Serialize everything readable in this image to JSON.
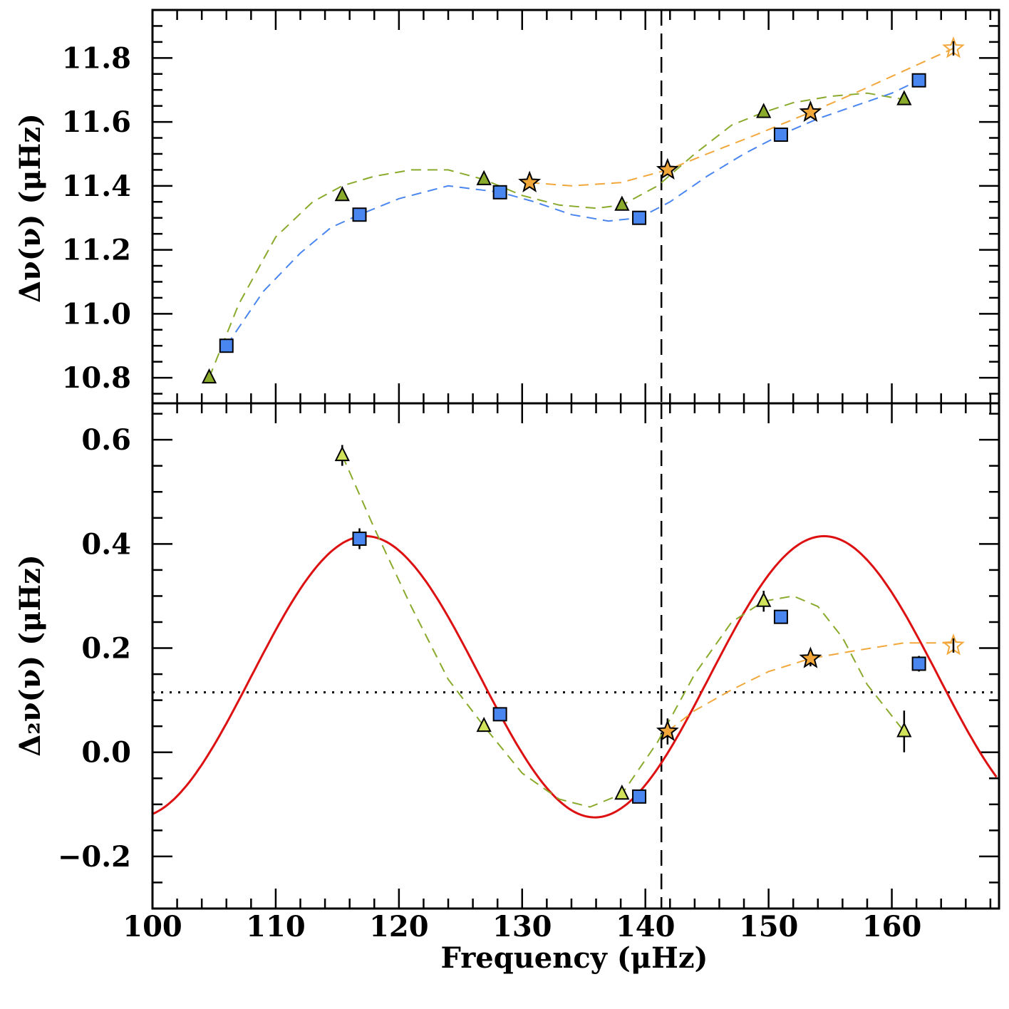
{
  "chart_data": {
    "type": "scatter",
    "xlabel": "Frequency (μHz)",
    "xlim": [
      100,
      168.7
    ],
    "xticks": [
      "100",
      "110",
      "120",
      "130",
      "140",
      "150",
      "160"
    ],
    "vline_x": 141.3,
    "colors": {
      "square": "#4a86f0",
      "triangle": "#8aaa2c",
      "star": "#f2a73a",
      "triangle_light": "#cfe25a",
      "fit": "#dd1111",
      "green_dash": "#8aaa2c",
      "blue_dash": "#4a86f0",
      "orange_dash": "#f2a73a"
    },
    "panels": [
      {
        "name": "top",
        "ylabel": "Δν(ν) (μHz)",
        "ylim": [
          10.72,
          11.95
        ],
        "yticks": [
          "10.8",
          "11.0",
          "11.2",
          "11.4",
          "11.6",
          "11.8"
        ],
        "series": [
          {
            "name": "squares",
            "marker": "square",
            "x": [
              106.0,
              116.8,
              128.2,
              139.5,
              151.0,
              162.2
            ],
            "y": [
              10.9,
              11.31,
              11.38,
              11.3,
              11.56,
              11.73
            ]
          },
          {
            "name": "triangles",
            "marker": "triangle",
            "x": [
              104.6,
              115.4,
              126.9,
              138.1,
              149.6,
              161.0
            ],
            "y": [
              10.8,
              11.37,
              11.42,
              11.34,
              11.63,
              11.67
            ]
          },
          {
            "name": "stars",
            "marker": "star",
            "x": [
              130.6,
              141.8,
              153.4,
              165.0
            ],
            "y": [
              11.41,
              11.45,
              11.63,
              11.83
            ]
          }
        ],
        "curves": [
          {
            "name": "green-dash",
            "x": [
              104.6,
              107,
              110,
              113,
              115.4,
              118,
              121,
              124,
              126.9,
              130,
              133,
              136,
              138.1,
              141,
              144,
              147,
              149.6,
              152,
              155,
              158,
              161.0
            ],
            "y": [
              10.8,
              11.03,
              11.24,
              11.35,
              11.4,
              11.43,
              11.45,
              11.45,
              11.42,
              11.37,
              11.34,
              11.33,
              11.34,
              11.4,
              11.5,
              11.59,
              11.63,
              11.66,
              11.68,
              11.69,
              11.67
            ]
          },
          {
            "name": "blue-dash",
            "x": [
              106.0,
              109,
              112,
              114.5,
              116.8,
              120,
              124,
              128.2,
              131,
              134,
              137,
              139.5,
              142,
              145,
              148,
              151.0,
              154,
              157,
              160,
              162.2
            ],
            "y": [
              10.9,
              11.07,
              11.19,
              11.27,
              11.31,
              11.36,
              11.4,
              11.38,
              11.35,
              11.31,
              11.29,
              11.3,
              11.35,
              11.43,
              11.5,
              11.56,
              11.61,
              11.65,
              11.69,
              11.73
            ]
          },
          {
            "name": "orange-dash",
            "x": [
              130.6,
              134,
              138,
              141.8,
              145,
              149,
              153.4,
              157,
              161,
              165.0
            ],
            "y": [
              11.41,
              11.4,
              11.41,
              11.45,
              11.5,
              11.56,
              11.63,
              11.69,
              11.76,
              11.83
            ]
          }
        ]
      },
      {
        "name": "bottom",
        "ylabel": "Δ₂ν(ν) (μHz)",
        "ylim": [
          -0.3,
          0.67
        ],
        "yticks": [
          "−0.2",
          "0.0",
          "0.2",
          "0.4",
          "0.6"
        ],
        "hline_y": 0.115,
        "series": [
          {
            "name": "squares",
            "marker": "square",
            "x": [
              116.8,
              128.2,
              139.5,
              151.0,
              162.2
            ],
            "y": [
              0.41,
              0.073,
              -0.085,
              0.26,
              0.17
            ],
            "err": [
              0.02,
              0.0,
              0.0,
              0.0,
              0.015
            ]
          },
          {
            "name": "triangles",
            "marker": "triangle_light",
            "x": [
              115.4,
              126.9,
              138.1,
              149.6,
              161.0
            ],
            "y": [
              0.57,
              0.05,
              -0.08,
              0.29,
              0.04
            ],
            "err": [
              0.02,
              0.0,
              0.0,
              0.02,
              0.04
            ]
          },
          {
            "name": "stars",
            "marker": "star",
            "x": [
              141.8,
              153.4,
              165.0
            ],
            "y": [
              0.04,
              0.18,
              0.205
            ],
            "err": [
              0.025,
              0.015,
              0.0
            ]
          }
        ],
        "curves": [
          {
            "name": "green-dash",
            "x": [
              115.4,
              118,
              121,
              124,
              126.9,
              130,
              133,
              135.5,
              138.1,
              141,
              144,
              147,
              149.6,
              152,
              154,
              156,
              158,
              161.0
            ],
            "y": [
              0.57,
              0.43,
              0.28,
              0.14,
              0.05,
              -0.04,
              -0.09,
              -0.105,
              -0.08,
              0.02,
              0.15,
              0.25,
              0.29,
              0.3,
              0.28,
              0.22,
              0.13,
              0.04
            ]
          },
          {
            "name": "orange-dash",
            "x": [
              141.8,
              144,
              147,
              150,
              153.4,
              157,
              161,
              165.0
            ],
            "y": [
              0.04,
              0.08,
              0.12,
              0.155,
              0.18,
              0.195,
              0.21,
              0.21
            ]
          }
        ],
        "fit": {
          "name": "red-fit",
          "type": "sine-fit",
          "offset": 0.145,
          "amp": 0.27,
          "period": 37.2,
          "peak_x": 117.3,
          "decay_ref_x": 126,
          "decay_scale": 60
        }
      }
    ]
  }
}
